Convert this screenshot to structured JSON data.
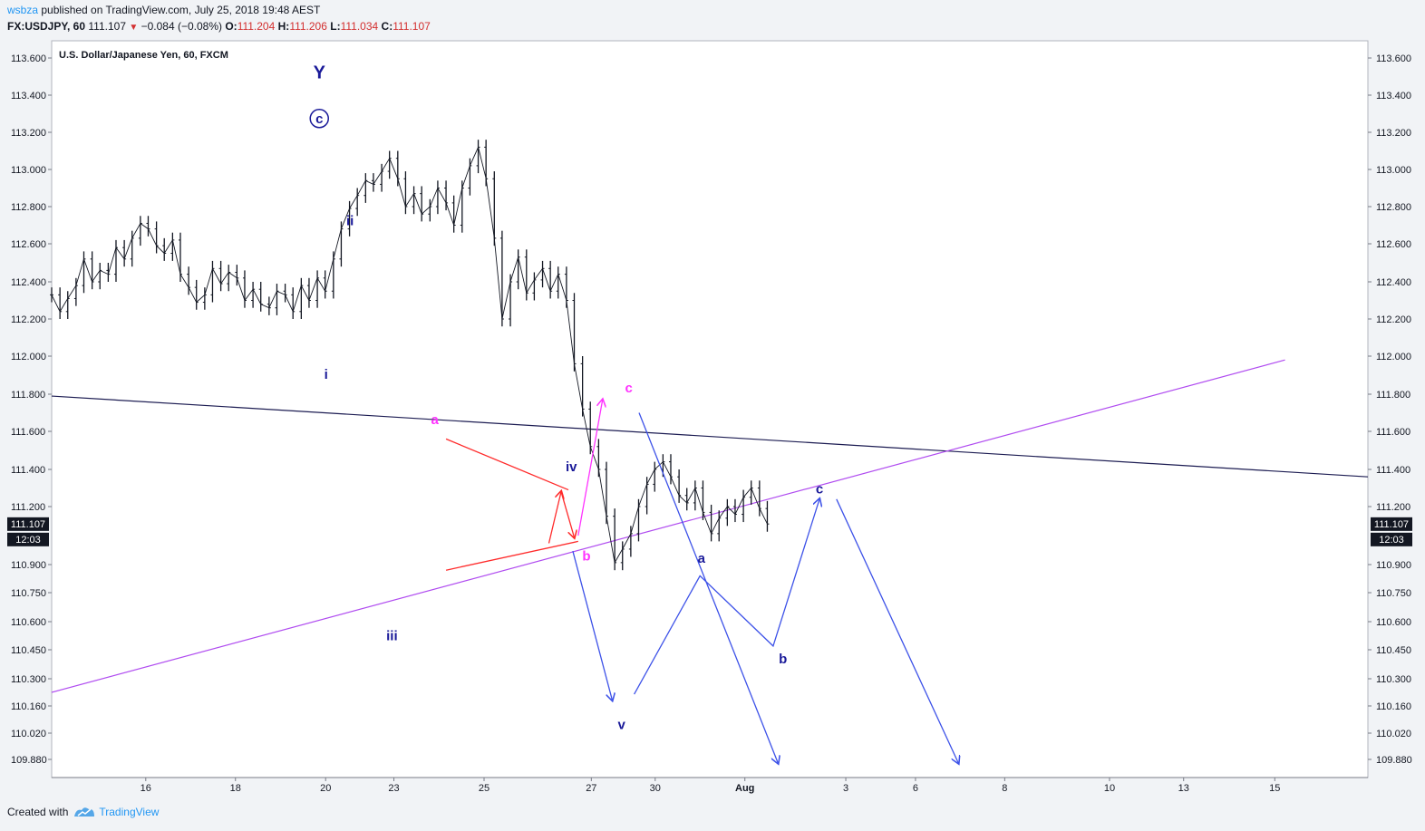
{
  "header": {
    "user": "wsbza",
    "published_text": " published on TradingView.com, July 25, 2018 19:48 AEST"
  },
  "symbol_bar": {
    "symbol": "FX:USDJPY, 60",
    "last": "111.107",
    "change": "−0.084 (−0.08%)",
    "o_label": "O:",
    "o": "111.204",
    "h_label": "H:",
    "h": "111.206",
    "l_label": "L:",
    "l": "111.034",
    "c_label": "C:",
    "c": "111.107"
  },
  "footer": {
    "created_with": "Created with",
    "brand": "TradingView"
  },
  "chart_data": {
    "type": "line",
    "title": "U.S. Dollar/Japanese Yen, 60, FXCM",
    "y_axis": {
      "ticks": [
        113.6,
        113.4,
        113.2,
        113.0,
        112.8,
        112.6,
        112.4,
        112.2,
        112.0,
        111.8,
        111.6,
        111.4,
        111.2,
        110.9,
        110.75,
        110.6,
        110.45,
        110.3,
        110.16,
        110.02,
        109.88
      ],
      "tick_labels": [
        "113.600",
        "113.400",
        "113.200",
        "113.000",
        "112.800",
        "112.600",
        "112.400",
        "112.200",
        "112.000",
        "111.800",
        "111.600",
        "111.400",
        "111.200",
        "110.900",
        "110.750",
        "110.600",
        "110.450",
        "110.300",
        "110.160",
        "110.020",
        "109.880"
      ],
      "ylim": [
        109.8,
        113.7
      ]
    },
    "x_axis": {
      "tick_labels": [
        "16",
        "18",
        "20",
        "23",
        "25",
        "27",
        "30",
        "Aug",
        "3",
        "6",
        "8",
        "10",
        "13",
        "15"
      ],
      "tick_positions": [
        1.93,
        3.77,
        5.62,
        7.02,
        8.87,
        11.07,
        12.38,
        14.22,
        16.29,
        17.72,
        19.55,
        21.7,
        23.22,
        25.09
      ],
      "xlim": [
        0,
        27
      ]
    },
    "price_badge": {
      "value": "111.107",
      "countdown": "12:03"
    },
    "colors": {
      "price": "#131722",
      "triangle": "#ff2a2a",
      "magenta": "#ff33ff",
      "projection": "#3d52e8",
      "navy": "#1a1a99",
      "trendline_top": "#1c1c52",
      "trendline_bottom": "#b04cf0"
    },
    "price_series": {
      "name": "USDJPY 60",
      "points": [
        [
          0.0,
          112.33
        ],
        [
          0.17,
          112.24
        ],
        [
          0.33,
          112.31
        ],
        [
          0.5,
          112.38
        ],
        [
          0.66,
          112.52
        ],
        [
          0.83,
          112.4
        ],
        [
          0.99,
          112.46
        ],
        [
          1.16,
          112.44
        ],
        [
          1.32,
          112.58
        ],
        [
          1.49,
          112.52
        ],
        [
          1.65,
          112.63
        ],
        [
          1.82,
          112.71
        ],
        [
          1.98,
          112.68
        ],
        [
          2.15,
          112.59
        ],
        [
          2.31,
          112.55
        ],
        [
          2.48,
          112.62
        ],
        [
          2.64,
          112.44
        ],
        [
          2.81,
          112.37
        ],
        [
          2.97,
          112.29
        ],
        [
          3.14,
          112.33
        ],
        [
          3.3,
          112.47
        ],
        [
          3.47,
          112.39
        ],
        [
          3.63,
          112.45
        ],
        [
          3.8,
          112.42
        ],
        [
          3.96,
          112.3
        ],
        [
          4.13,
          112.36
        ],
        [
          4.29,
          112.28
        ],
        [
          4.46,
          112.26
        ],
        [
          4.62,
          112.35
        ],
        [
          4.79,
          112.33
        ],
        [
          4.95,
          112.24
        ],
        [
          5.12,
          112.38
        ],
        [
          5.28,
          112.3
        ],
        [
          5.45,
          112.42
        ],
        [
          5.61,
          112.35
        ],
        [
          5.78,
          112.52
        ],
        [
          5.94,
          112.68
        ],
        [
          6.11,
          112.79
        ],
        [
          6.27,
          112.86
        ],
        [
          6.44,
          112.94
        ],
        [
          6.6,
          112.92
        ],
        [
          6.77,
          112.99
        ],
        [
          6.93,
          113.06
        ],
        [
          7.1,
          112.95
        ],
        [
          7.26,
          112.8
        ],
        [
          7.43,
          112.87
        ],
        [
          7.59,
          112.76
        ],
        [
          7.76,
          112.8
        ],
        [
          7.92,
          112.9
        ],
        [
          8.09,
          112.82
        ],
        [
          8.25,
          112.7
        ],
        [
          8.42,
          112.9
        ],
        [
          8.58,
          113.02
        ],
        [
          8.75,
          113.12
        ],
        [
          8.91,
          112.95
        ],
        [
          9.08,
          112.63
        ],
        [
          9.24,
          112.2
        ],
        [
          9.41,
          112.4
        ],
        [
          9.57,
          112.53
        ],
        [
          9.74,
          112.34
        ],
        [
          9.9,
          112.41
        ],
        [
          10.07,
          112.47
        ],
        [
          10.23,
          112.35
        ],
        [
          10.39,
          112.44
        ],
        [
          10.56,
          112.3
        ],
        [
          10.72,
          111.96
        ],
        [
          10.89,
          111.72
        ],
        [
          11.05,
          111.52
        ],
        [
          11.22,
          111.4
        ],
        [
          11.38,
          111.15
        ],
        [
          11.55,
          110.91
        ],
        [
          11.71,
          110.98
        ],
        [
          11.88,
          111.06
        ],
        [
          12.04,
          111.2
        ],
        [
          12.21,
          111.32
        ],
        [
          12.37,
          111.4
        ],
        [
          12.54,
          111.44
        ],
        [
          12.7,
          111.36
        ],
        [
          12.87,
          111.26
        ],
        [
          13.03,
          111.22
        ],
        [
          13.2,
          111.3
        ],
        [
          13.36,
          111.17
        ],
        [
          13.53,
          111.06
        ],
        [
          13.69,
          111.14
        ],
        [
          13.86,
          111.2
        ],
        [
          14.02,
          111.16
        ],
        [
          14.19,
          111.25
        ],
        [
          14.35,
          111.3
        ],
        [
          14.52,
          111.19
        ],
        [
          14.68,
          111.11
        ]
      ]
    },
    "trendlines": [
      {
        "from": [
          0.0,
          111.79
        ],
        "to": [
          27.0,
          111.36
        ]
      },
      {
        "from": [
          0.0,
          110.23
        ],
        "to": [
          25.3,
          111.98
        ]
      }
    ],
    "triangle": [
      {
        "from": [
          8.09,
          111.56
        ],
        "to": [
          10.6,
          111.29
        ]
      },
      {
        "from": [
          8.09,
          110.87
        ],
        "to": [
          10.8,
          111.02
        ]
      }
    ],
    "red_zigzag": [
      [
        10.2,
        111.01
      ],
      [
        10.45,
        111.28
      ],
      [
        10.72,
        111.04
      ]
    ],
    "magenta_path": [
      [
        10.8,
        111.05
      ],
      [
        11.3,
        111.77
      ]
    ],
    "projection_path": [
      [
        10.69,
        110.97
      ],
      [
        11.5,
        110.19
      ]
    ],
    "projection_path2": [
      [
        11.95,
        110.22
      ],
      [
        13.3,
        110.84
      ],
      [
        14.8,
        110.47
      ],
      [
        15.75,
        111.24
      ]
    ],
    "projection_path3": [
      [
        12.05,
        111.7
      ],
      [
        14.9,
        109.86
      ]
    ],
    "projection_path4": [
      [
        16.1,
        111.24
      ],
      [
        18.6,
        109.86
      ]
    ],
    "wave_labels": [
      {
        "text": "Y",
        "at": [
          5.49,
          113.49
        ],
        "color": "#1a1a99"
      },
      {
        "text": "c",
        "at": [
          5.49,
          113.25
        ],
        "color": "#1a1a99",
        "circled": true
      },
      {
        "text": "ii",
        "at": [
          6.12,
          112.7
        ],
        "color": "#1a1a99"
      },
      {
        "text": "i",
        "at": [
          5.63,
          111.88
        ],
        "color": "#1a1a99"
      },
      {
        "text": "iii",
        "at": [
          6.98,
          110.5
        ],
        "color": "#1a1a99"
      },
      {
        "text": "a",
        "at": [
          7.86,
          111.64
        ],
        "color": "#ff33ff"
      },
      {
        "text": "iv",
        "at": [
          10.66,
          111.39
        ],
        "color": "#1a1a99"
      },
      {
        "text": "b",
        "at": [
          10.97,
          110.92
        ],
        "color": "#ff33ff"
      },
      {
        "text": "c",
        "at": [
          11.84,
          111.81
        ],
        "color": "#ff33ff"
      },
      {
        "text": "v",
        "at": [
          11.69,
          110.04
        ],
        "color": "#1a1a99"
      },
      {
        "text": "a",
        "at": [
          13.33,
          110.91
        ],
        "color": "#1a1a99"
      },
      {
        "text": "b",
        "at": [
          15.0,
          110.38
        ],
        "color": "#1a1a99"
      },
      {
        "text": "c",
        "at": [
          15.75,
          111.27
        ],
        "color": "#1a1a99"
      }
    ]
  }
}
